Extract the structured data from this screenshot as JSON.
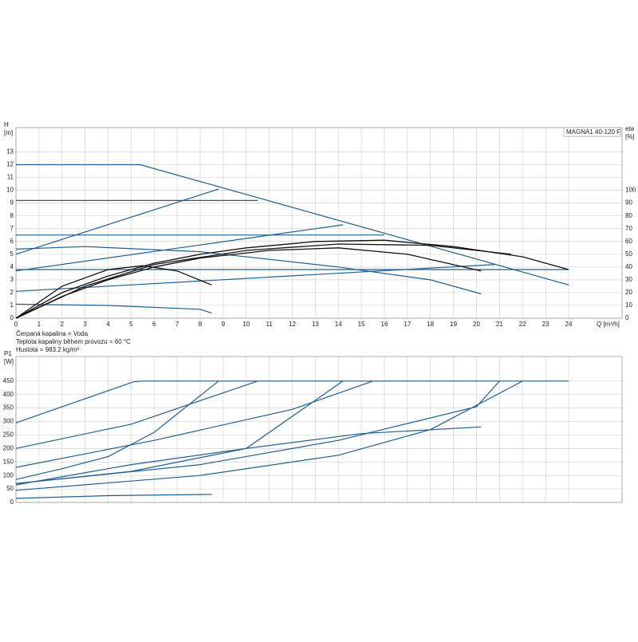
{
  "chart_data": [
    {
      "type": "line",
      "title": "MAGNA1 40-120 F",
      "ylabel": "H",
      "yunit": "[m]",
      "y2label": "eta",
      "y2unit": "[%]",
      "xlabel": "Q [m³/h]",
      "notes": [
        "Čerpaná kapalina = Voda",
        "Teplota kapaliny během provozu = 60 °C",
        "Hustota = 983.2 kg/m³"
      ],
      "xlim": [
        0,
        26.32
      ],
      "xticks": [
        0,
        1,
        2,
        3,
        4,
        5,
        6,
        7,
        8,
        9,
        10,
        11,
        12,
        13,
        14,
        15,
        16,
        17,
        18,
        19,
        20,
        21,
        22,
        23,
        24
      ],
      "ylim": [
        0,
        14.9
      ],
      "yticks": [
        0,
        1,
        2,
        3,
        4,
        5,
        6,
        7,
        8,
        9,
        10,
        11,
        12,
        13
      ],
      "y2lim": [
        0,
        149
      ],
      "y2ticks": [
        0,
        10,
        20,
        30,
        40,
        50,
        60,
        70,
        80,
        90,
        100
      ],
      "grid": true,
      "series": [
        {
          "color": "#1f5f8f",
          "x": [
            0,
            5.4,
            24
          ],
          "values": [
            12,
            12,
            2.6
          ]
        },
        {
          "color": "#1f5f8f",
          "x": [
            0,
            10.5
          ],
          "values": [
            9.2,
            9.2
          ]
        },
        {
          "color": "#1f5f8f",
          "x": [
            0,
            16
          ],
          "values": [
            6.5,
            6.5
          ]
        },
        {
          "color": "#1f5f8f",
          "x": [
            0,
            24
          ],
          "values": [
            3.8,
            3.8
          ]
        },
        {
          "color": "#1f5f8f",
          "x": [
            0,
            8.8
          ],
          "values": [
            5,
            10.1
          ]
        },
        {
          "color": "#1f5f8f",
          "x": [
            0,
            14.2
          ],
          "values": [
            3.7,
            7.3
          ]
        },
        {
          "color": "#1f5f8f",
          "x": [
            0,
            20.8
          ],
          "values": [
            2.1,
            4.2
          ]
        },
        {
          "color": "#1f5f8f",
          "x": [
            0,
            3,
            8,
            14,
            18,
            20.2
          ],
          "values": [
            5.4,
            5.6,
            5.2,
            4,
            3,
            1.9
          ]
        },
        {
          "color": "#1f5f8f",
          "x": [
            0,
            4,
            8,
            8.5
          ],
          "values": [
            1.1,
            1,
            0.7,
            0.4
          ]
        },
        {
          "color": "#111111",
          "axis": "y2",
          "x": [
            0,
            2,
            4,
            6,
            8,
            10,
            13,
            16,
            19,
            22,
            24
          ],
          "values": [
            0,
            20,
            33,
            43,
            50,
            55,
            60,
            61,
            56,
            48,
            38
          ]
        },
        {
          "color": "#111111",
          "axis": "y2",
          "x": [
            0,
            2,
            4,
            6,
            8,
            11,
            14,
            17,
            20.2
          ],
          "values": [
            0,
            17,
            30,
            40,
            47,
            53,
            55,
            50,
            37
          ]
        },
        {
          "color": "#111111",
          "axis": "y2",
          "x": [
            0,
            3,
            6,
            10,
            14,
            18,
            21.5
          ],
          "values": [
            0,
            25,
            42,
            53,
            58,
            57,
            50
          ]
        },
        {
          "color": "#111111",
          "axis": "y2",
          "x": [
            0,
            2,
            4,
            5.5,
            7,
            8.5
          ],
          "values": [
            0,
            25,
            38,
            41,
            37,
            26
          ]
        }
      ]
    },
    {
      "type": "line",
      "ylabel": "P1",
      "yunit": "[W]",
      "xlim": [
        0,
        26.32
      ],
      "ylim": [
        0,
        541
      ],
      "yticks": [
        0,
        50,
        100,
        150,
        200,
        250,
        300,
        350,
        400,
        450
      ],
      "grid": true,
      "series": [
        {
          "color": "#1f5f8f",
          "x": [
            0,
            5.1,
            5.5,
            24
          ],
          "values": [
            295,
            447,
            450,
            450
          ]
        },
        {
          "color": "#1f5f8f",
          "x": [
            0,
            5,
            10.5
          ],
          "values": [
            200,
            290,
            450
          ]
        },
        {
          "color": "#1f5f8f",
          "x": [
            0,
            6,
            12,
            15.5
          ],
          "values": [
            130,
            230,
            345,
            450
          ]
        },
        {
          "color": "#1f5f8f",
          "x": [
            0,
            2,
            4,
            6,
            8.8
          ],
          "values": [
            85,
            125,
            170,
            260,
            450
          ]
        },
        {
          "color": "#1f5f8f",
          "x": [
            0,
            5,
            10,
            14.2
          ],
          "values": [
            70,
            115,
            200,
            450
          ]
        },
        {
          "color": "#1f5f8f",
          "x": [
            0,
            8,
            14,
            20,
            21
          ],
          "values": [
            70,
            140,
            230,
            355,
            450
          ]
        },
        {
          "color": "#1f5f8f",
          "x": [
            0,
            8,
            14,
            18,
            22
          ],
          "values": [
            45,
            100,
            175,
            270,
            450
          ]
        },
        {
          "color": "#1f5f8f",
          "x": [
            0,
            5,
            10,
            15,
            20.2
          ],
          "values": [
            65,
            140,
            200,
            255,
            280
          ]
        },
        {
          "color": "#1f5f8f",
          "x": [
            0,
            4,
            8.5
          ],
          "values": [
            15,
            25,
            30
          ]
        }
      ]
    }
  ]
}
